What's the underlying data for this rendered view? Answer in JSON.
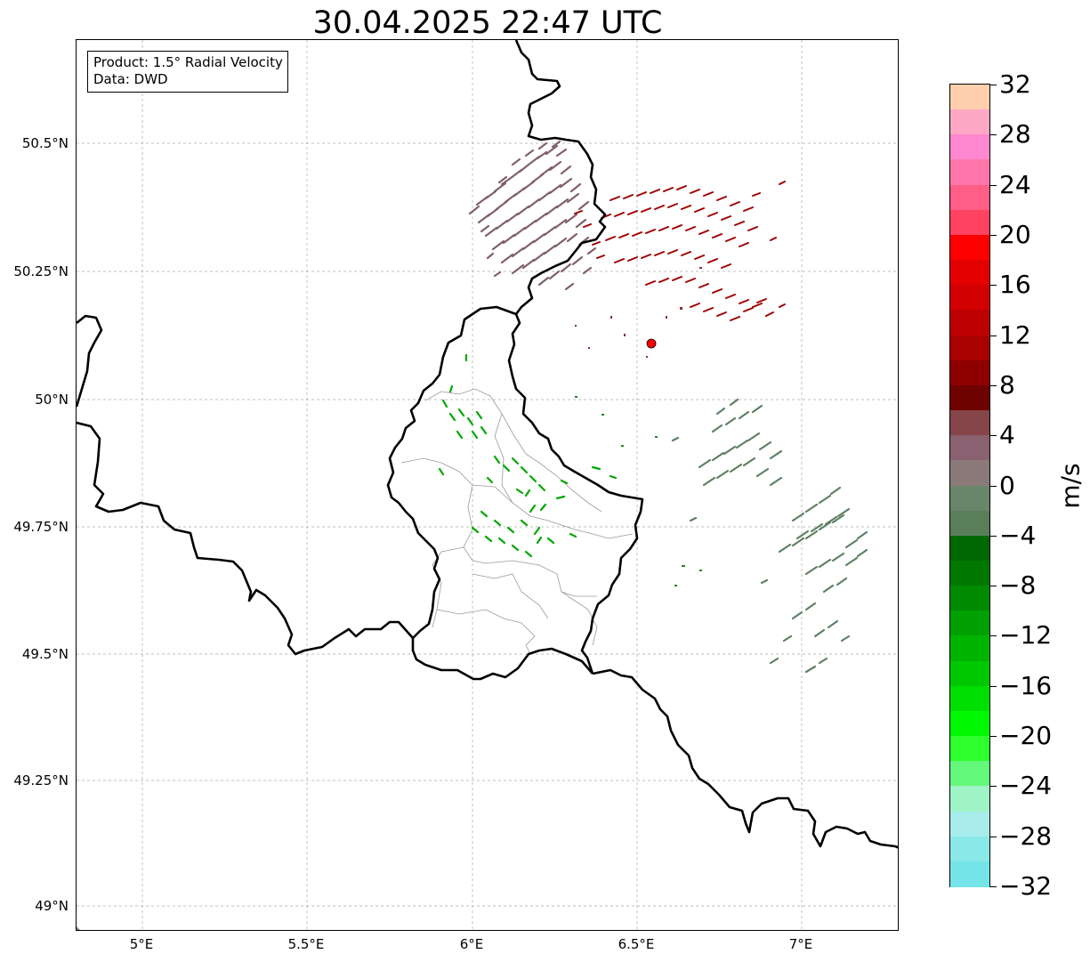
{
  "title": "30.04.2025 22:47 UTC",
  "info": {
    "product": "Product: 1.5° Radial Velocity",
    "data": "Data: DWD"
  },
  "lat_ticks": [
    "50.5°N",
    "50.25°N",
    "50°N",
    "49.75°N",
    "49.5°N",
    "49.25°N",
    "49°N"
  ],
  "lon_ticks": [
    "5°E",
    "5.5°E",
    "6°E",
    "6.5°E",
    "7°E"
  ],
  "colorbar": {
    "unit": "m/s",
    "tick_labels": [
      "32",
      "28",
      "24",
      "20",
      "16",
      "12",
      "8",
      "4",
      "0",
      "−4",
      "−8",
      "−12",
      "−16",
      "−20",
      "−24",
      "−28",
      "−32"
    ],
    "colors": [
      "#ffcfae",
      "#ffa8c6",
      "#ff88d0",
      "#ff77aa",
      "#ff5e86",
      "#ff4262",
      "#ff0000",
      "#e50000",
      "#d20000",
      "#bd0000",
      "#a90000",
      "#8e0000",
      "#6e0000",
      "#864549",
      "#896170",
      "#8a7a7a",
      "#6a866a",
      "#5a7e5a",
      "#006800",
      "#007800",
      "#008a00",
      "#00a000",
      "#00b400",
      "#00c800",
      "#00e000",
      "#00f800",
      "#2cff2c",
      "#64f87a",
      "#9ef4c6",
      "#a8ecec",
      "#8ae8e8",
      "#74e4e8"
    ]
  },
  "radar_site": {
    "lon": 6.548,
    "lat": 50.111
  }
}
